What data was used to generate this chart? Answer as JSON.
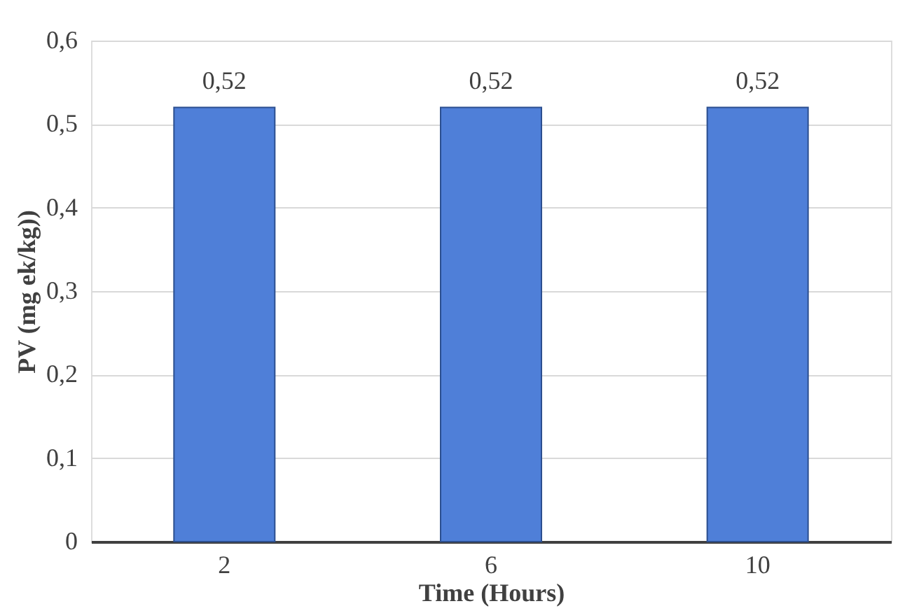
{
  "chart_data": {
    "type": "bar",
    "xlabel": "Time (Hours)",
    "ylabel": "PV (mg ek/kg))",
    "categories": [
      "2",
      "6",
      "10"
    ],
    "values": [
      0.52,
      0.52,
      0.52
    ],
    "value_labels": [
      "0,52",
      "0,52",
      "0,52"
    ],
    "color": "#4f7fd8",
    "ylim": [
      0,
      0.6
    ],
    "yticks": [
      {
        "value": 0,
        "label": "0"
      },
      {
        "value": 0.1,
        "label": "0,1"
      },
      {
        "value": 0.2,
        "label": "0,2"
      },
      {
        "value": 0.3,
        "label": "0,3"
      },
      {
        "value": 0.4,
        "label": "0,4"
      },
      {
        "value": 0.5,
        "label": "0,5"
      },
      {
        "value": 0.6,
        "label": "0,6"
      }
    ],
    "grid": "y"
  }
}
